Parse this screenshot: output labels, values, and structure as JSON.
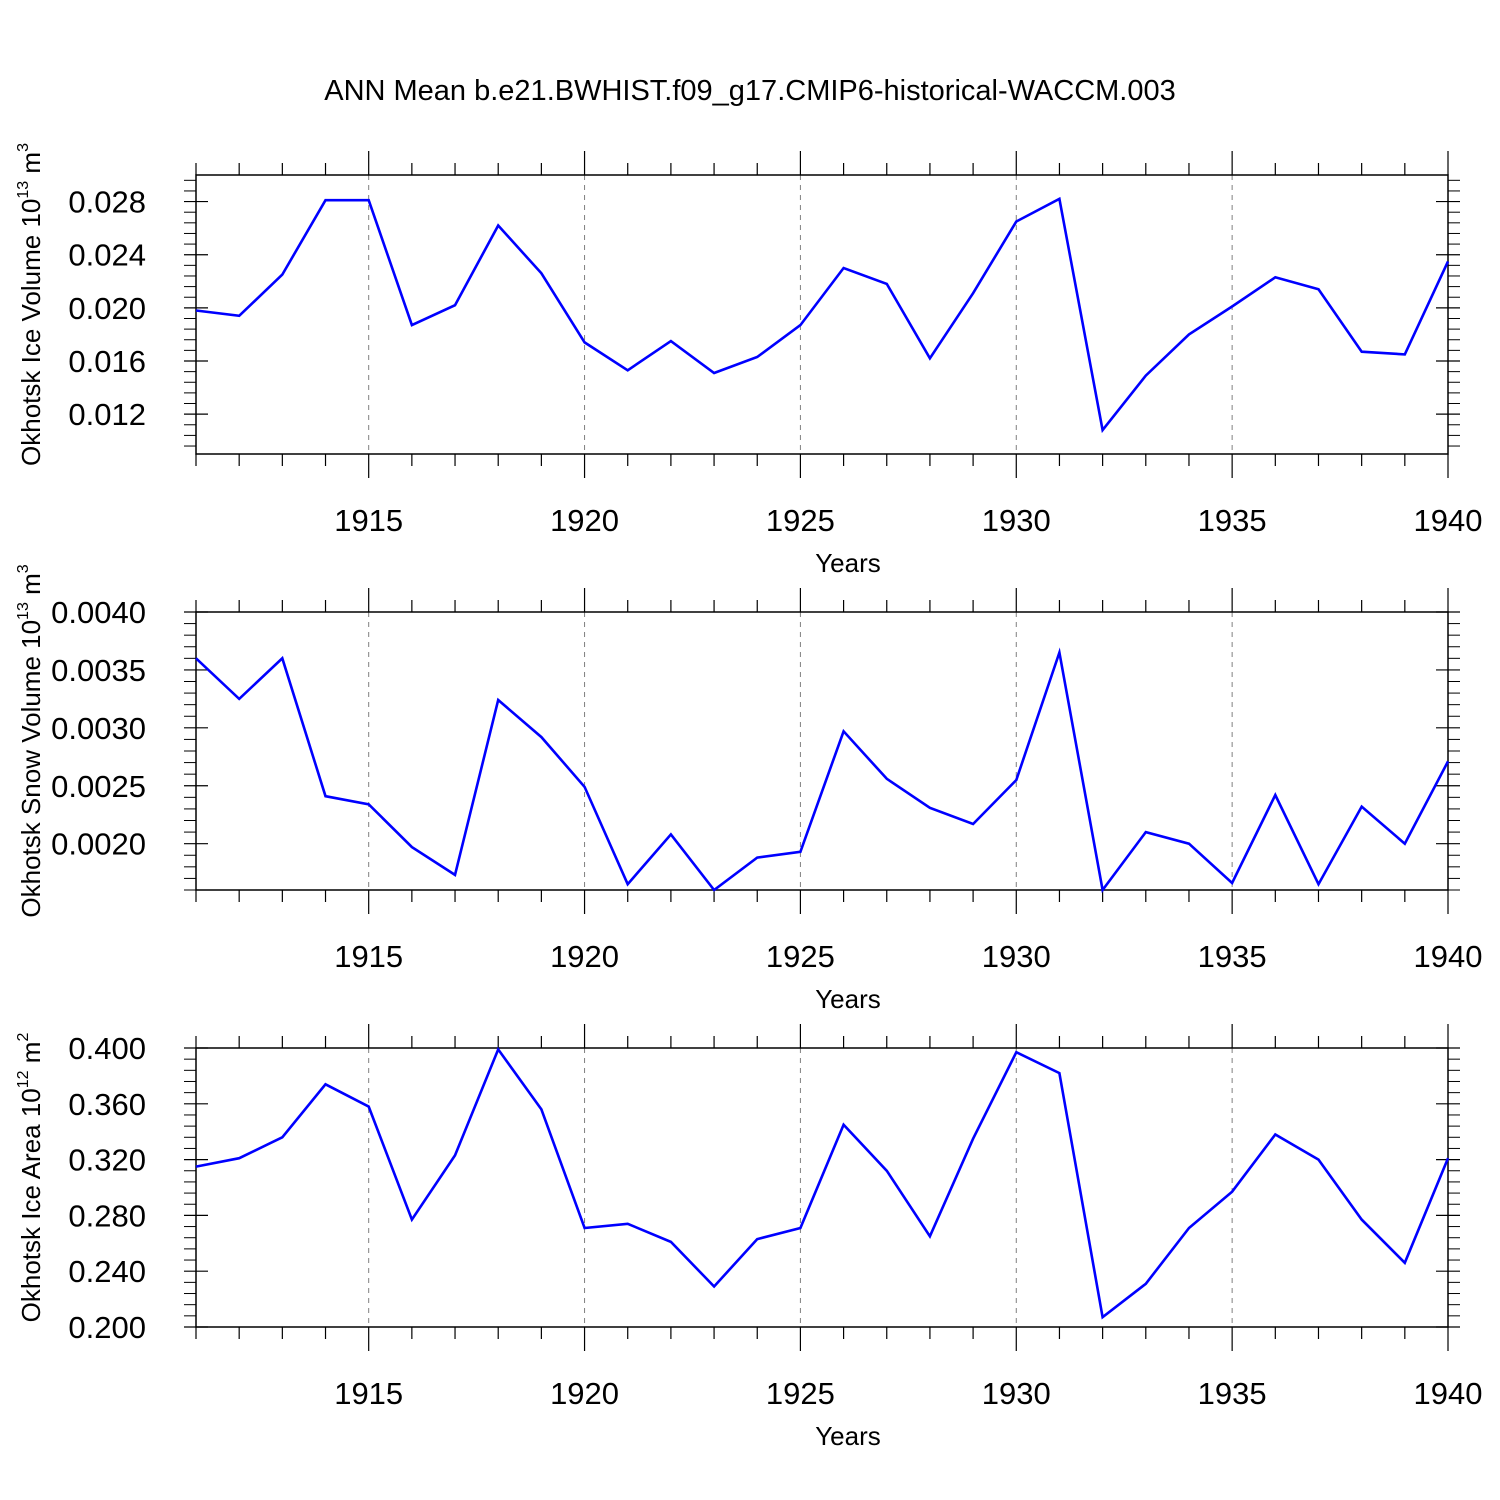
{
  "title": "ANN Mean b.e21.BWHIST.f09_g17.CMIP6-historical-WACCM.003",
  "colors": {
    "series": "#0000ff",
    "axis": "#000000",
    "grid": "#808080"
  },
  "chart_data": [
    {
      "type": "line",
      "ylabel_main": "Okhotsk Ice Volume 10",
      "ylabel_exp": "13",
      "ylabel_unit": " m",
      "ylabel_unit_exp": "3",
      "xlabel": "Years",
      "xlim": [
        1911,
        1940
      ],
      "ylim": [
        0.009,
        0.03
      ],
      "yticks": [
        0.012,
        0.016,
        0.02,
        0.024,
        0.028
      ],
      "ytick_labels": [
        "0.012",
        "0.016",
        "0.020",
        "0.024",
        "0.028"
      ],
      "xticks": [
        1915,
        1920,
        1925,
        1930,
        1935,
        1940
      ],
      "xtick_labels": [
        "1915",
        "1920",
        "1925",
        "1930",
        "1935",
        "1940"
      ],
      "grid": "dashed vertical at major x ticks",
      "x": [
        1911,
        1912,
        1913,
        1914,
        1915,
        1916,
        1917,
        1918,
        1919,
        1920,
        1921,
        1922,
        1923,
        1924,
        1925,
        1926,
        1927,
        1928,
        1929,
        1930,
        1931,
        1932,
        1933,
        1934,
        1935,
        1936,
        1937,
        1938,
        1939,
        1940
      ],
      "values": [
        0.0198,
        0.0194,
        0.0225,
        0.0281,
        0.0281,
        0.0187,
        0.0202,
        0.0262,
        0.0226,
        0.0174,
        0.0153,
        0.0175,
        0.0151,
        0.0163,
        0.0187,
        0.023,
        0.0218,
        0.0162,
        0.0211,
        0.0265,
        0.0282,
        0.0108,
        0.0149,
        0.018,
        0.0201,
        0.0223,
        0.0214,
        0.0167,
        0.0165,
        0.0235
      ]
    },
    {
      "type": "line",
      "ylabel_main": "Okhotsk Snow Volume 10",
      "ylabel_exp": "13",
      "ylabel_unit": " m",
      "ylabel_unit_exp": "3",
      "xlabel": "Years",
      "xlim": [
        1911,
        1940
      ],
      "ylim": [
        0.0016,
        0.004
      ],
      "yticks": [
        0.002,
        0.0025,
        0.003,
        0.0035,
        0.004
      ],
      "ytick_labels": [
        "0.0020",
        "0.0025",
        "0.0030",
        "0.0035",
        "0.0040"
      ],
      "xticks": [
        1915,
        1920,
        1925,
        1930,
        1935,
        1940
      ],
      "xtick_labels": [
        "1915",
        "1920",
        "1925",
        "1930",
        "1935",
        "1940"
      ],
      "grid": "dashed vertical at major x ticks",
      "x": [
        1911,
        1912,
        1913,
        1914,
        1915,
        1916,
        1917,
        1918,
        1919,
        1920,
        1921,
        1922,
        1923,
        1924,
        1925,
        1926,
        1927,
        1928,
        1929,
        1930,
        1931,
        1932,
        1933,
        1934,
        1935,
        1936,
        1937,
        1938,
        1939,
        1940
      ],
      "values": [
        0.0036,
        0.00325,
        0.0036,
        0.00241,
        0.00234,
        0.00197,
        0.00173,
        0.00324,
        0.00292,
        0.00249,
        0.00165,
        0.00208,
        0.0016,
        0.00188,
        0.00193,
        0.00297,
        0.00256,
        0.00231,
        0.00217,
        0.00255,
        0.00365,
        0.0016,
        0.0021,
        0.002,
        0.00166,
        0.00242,
        0.00165,
        0.00232,
        0.002,
        0.00271
      ]
    },
    {
      "type": "line",
      "ylabel_main": "Okhotsk Ice Area 10",
      "ylabel_exp": "12",
      "ylabel_unit": " m",
      "ylabel_unit_exp": "2",
      "xlabel": "Years",
      "xlim": [
        1911,
        1940
      ],
      "ylim": [
        0.2,
        0.4
      ],
      "yticks": [
        0.2,
        0.24,
        0.28,
        0.32,
        0.36,
        0.4
      ],
      "ytick_labels": [
        "0.200",
        "0.240",
        "0.280",
        "0.320",
        "0.360",
        "0.400"
      ],
      "xticks": [
        1915,
        1920,
        1925,
        1930,
        1935,
        1940
      ],
      "xtick_labels": [
        "1915",
        "1920",
        "1925",
        "1930",
        "1935",
        "1940"
      ],
      "grid": "dashed vertical at major x ticks",
      "x": [
        1911,
        1912,
        1913,
        1914,
        1915,
        1916,
        1917,
        1918,
        1919,
        1920,
        1921,
        1922,
        1923,
        1924,
        1925,
        1926,
        1927,
        1928,
        1929,
        1930,
        1931,
        1932,
        1933,
        1934,
        1935,
        1936,
        1937,
        1938,
        1939,
        1940
      ],
      "values": [
        0.315,
        0.321,
        0.336,
        0.374,
        0.358,
        0.277,
        0.323,
        0.399,
        0.356,
        0.271,
        0.274,
        0.261,
        0.229,
        0.263,
        0.271,
        0.345,
        0.312,
        0.265,
        0.335,
        0.397,
        0.382,
        0.207,
        0.231,
        0.271,
        0.297,
        0.338,
        0.32,
        0.277,
        0.246,
        0.321
      ]
    }
  ]
}
